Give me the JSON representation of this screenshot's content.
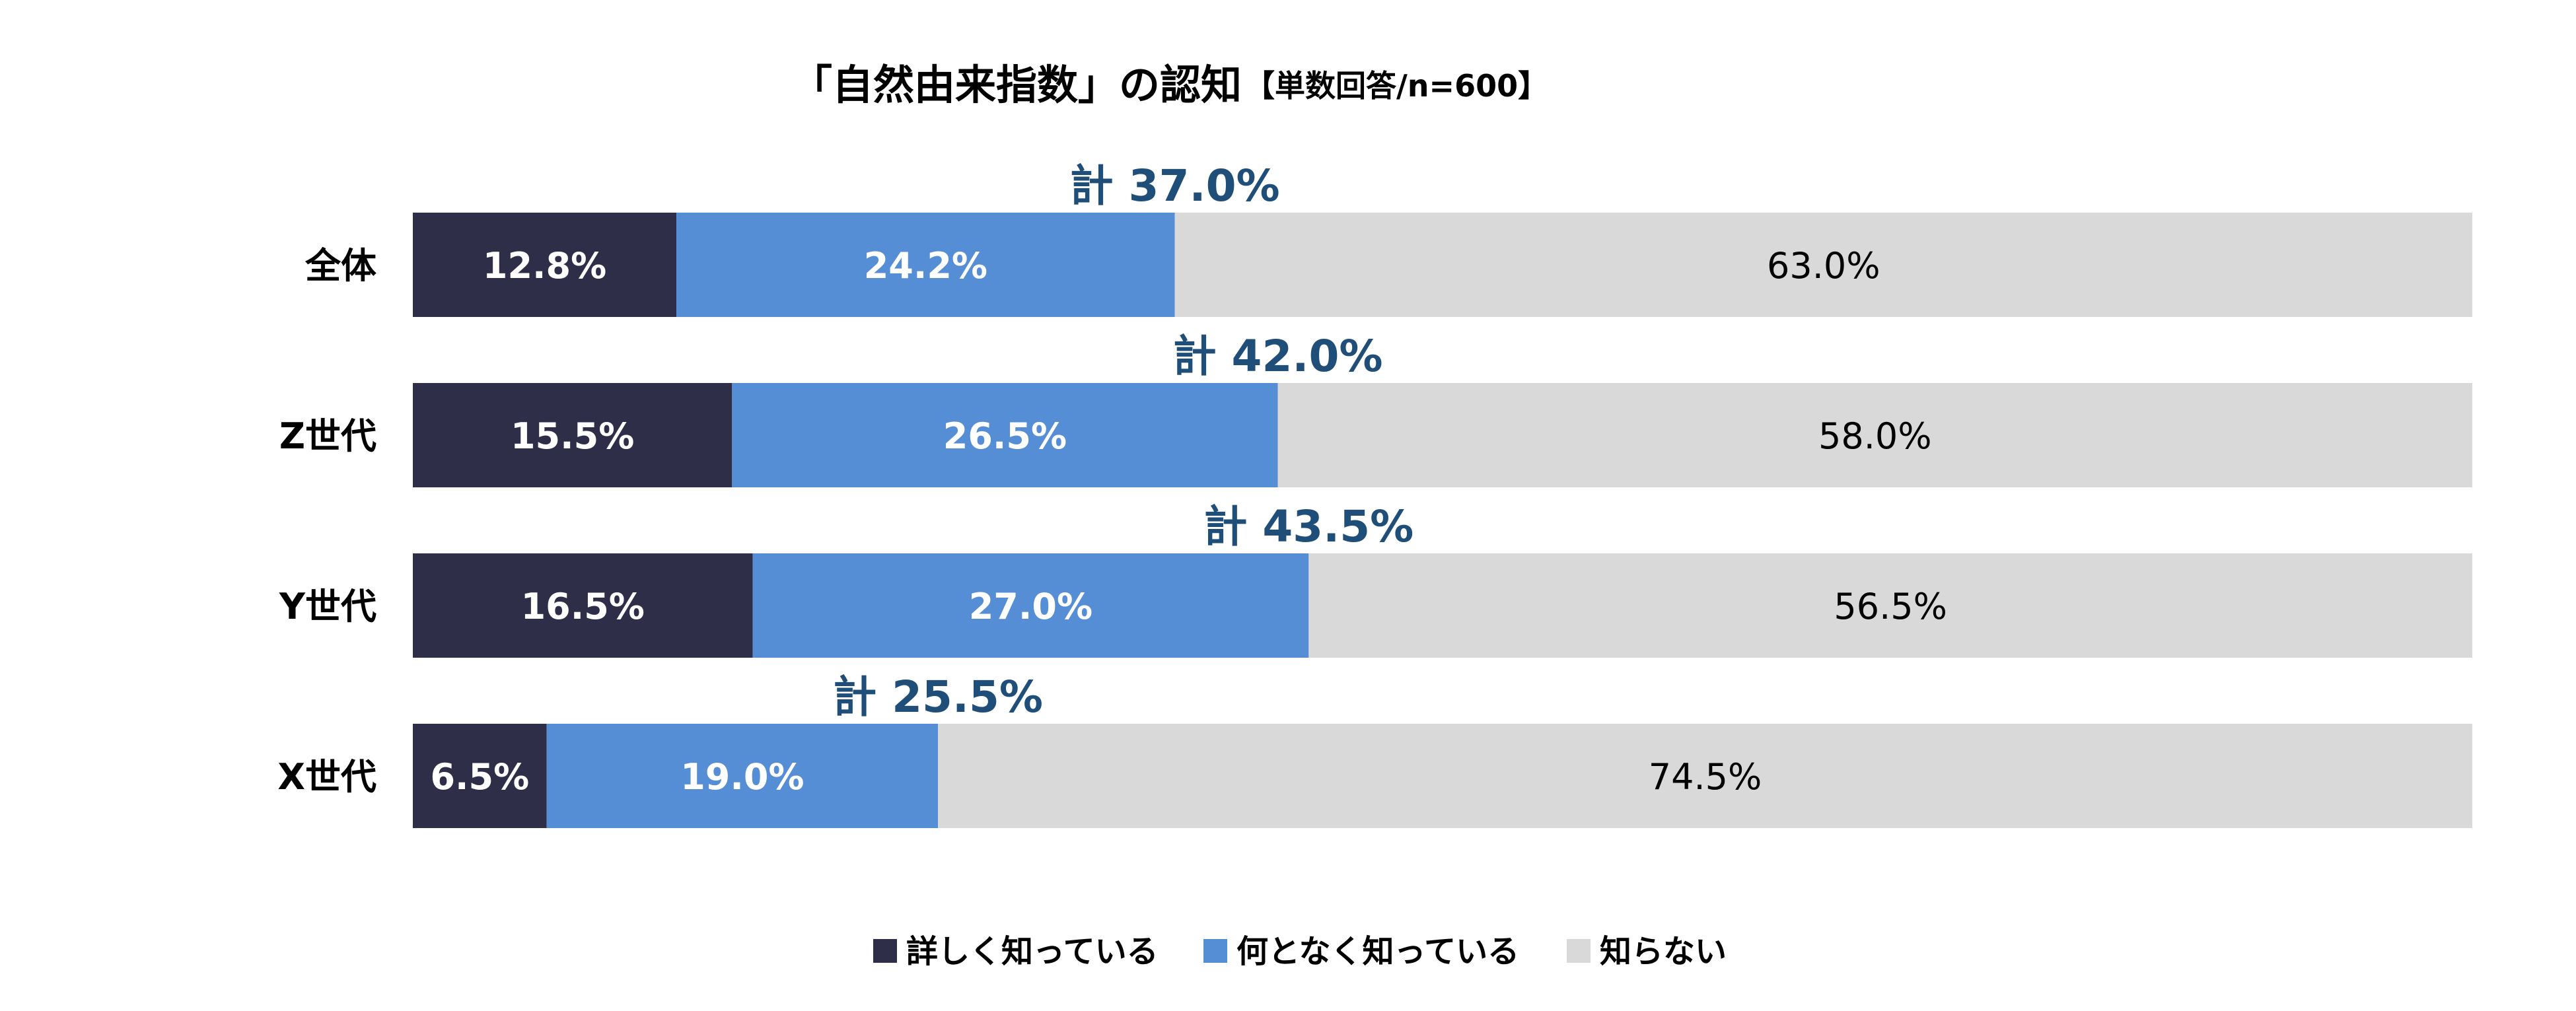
{
  "chart_data": {
    "type": "bar",
    "orientation": "horizontal",
    "stacked": true,
    "title": "「自然由来指数」の認知",
    "subtitle": "【単数回答/n=600】",
    "categories": [
      "全体",
      "Z世代",
      "Y世代",
      "X世代"
    ],
    "series": [
      {
        "name": "詳しく知っている",
        "values": [
          12.8,
          15.5,
          16.5,
          6.5
        ],
        "labels": [
          "12.8%",
          "15.5%",
          "16.5%",
          "6.5%"
        ],
        "color": "#2e2e48",
        "label_color": "#ffffff"
      },
      {
        "name": "何となく知っている",
        "values": [
          24.2,
          26.5,
          27.0,
          19.0
        ],
        "labels": [
          "24.2%",
          "26.5%",
          "27.0%",
          "19.0%"
        ],
        "color": "#558ed5",
        "label_color": "#ffffff"
      },
      {
        "name": "知らない",
        "values": [
          63.0,
          58.0,
          56.5,
          74.5
        ],
        "labels": [
          "63.0%",
          "58.0%",
          "56.5%",
          "74.5%"
        ],
        "color": "#d9d9d9",
        "label_color": "#000000"
      }
    ],
    "totals": [
      "計 37.0%",
      "計 42.0%",
      "計 43.5%",
      "計 25.5%"
    ],
    "total_color": "#1f4e79",
    "xlim": [
      0,
      100
    ],
    "grid": false,
    "legend_position": "bottom"
  }
}
